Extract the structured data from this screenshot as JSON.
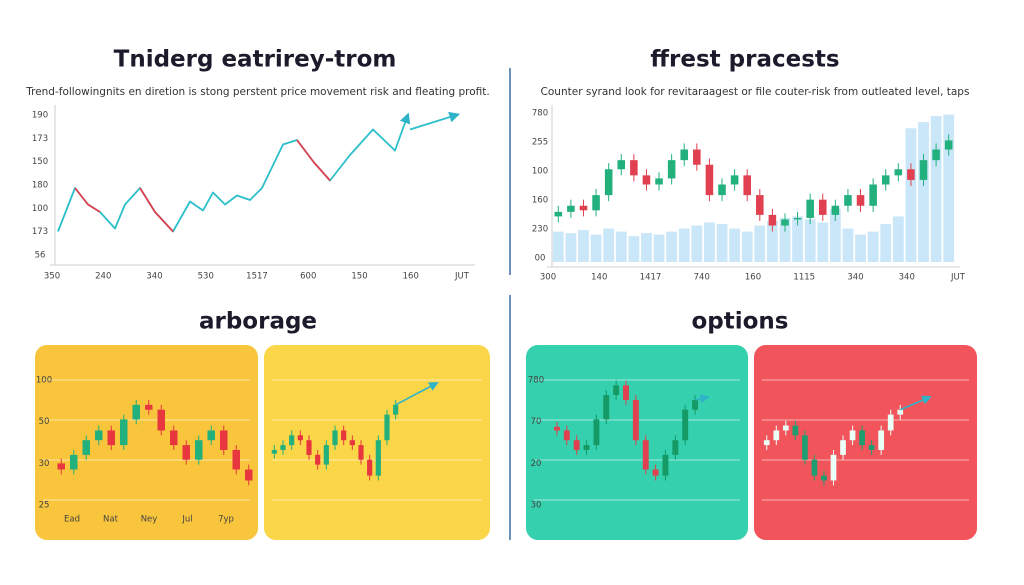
{
  "chart_data": [
    {
      "type": "line",
      "title": "Tniderg eatrirey-trom",
      "subtitle": "Trend-followingnits en diretion is stong perstent price movement risk and fleating profit.",
      "y_labels": [
        "190",
        "173",
        "150",
        "180",
        "100",
        "173",
        "56"
      ],
      "x_labels": [
        "350",
        "240",
        "340",
        "530",
        "1517",
        "600",
        "150",
        "160",
        "JUT"
      ],
      "xlim": [
        0,
        415
      ],
      "ylim": [
        0,
        100
      ],
      "series": [
        {
          "color": "#2bbfc9",
          "arrow": true,
          "x": [
            3,
            20,
            33,
            45,
            60,
            70,
            85,
            100,
            118,
            135,
            148,
            158,
            170,
            182,
            195,
            207,
            228,
            242,
            259,
            275,
            295,
            318,
            340,
            353
          ],
          "values": [
            19,
            48,
            37,
            32,
            21,
            37,
            48,
            32,
            19,
            39,
            33,
            45,
            37,
            43,
            40,
            48,
            77,
            80,
            65,
            53,
            70,
            87,
            73,
            97
          ]
        },
        {
          "color": "#e0404f",
          "x": [
            3,
            20,
            33,
            45,
            60,
            70,
            85,
            100,
            118,
            135,
            148,
            158,
            170,
            182,
            195,
            207,
            228,
            242,
            259,
            275,
            295,
            318,
            340,
            353
          ],
          "values": [
            null,
            48,
            37,
            32,
            null,
            null,
            48,
            32,
            19,
            null,
            null,
            null,
            null,
            null,
            null,
            null,
            null,
            80,
            65,
            53,
            null,
            null,
            null,
            null
          ]
        },
        {
          "color": "#2bbfc9",
          "arrow": true,
          "x": [
            355,
            403
          ],
          "values": [
            87,
            97
          ]
        }
      ]
    },
    {
      "type": "candlestick",
      "title": "ffrest pracests",
      "subtitle": "Counter syrand look for revitaraagest or file couter-risk from outleated level, taps",
      "y_labels": [
        "780",
        "255",
        "100",
        "160",
        "230",
        "00"
      ],
      "x_labels": [
        "300",
        "140",
        "1417",
        "740",
        "160",
        "1115",
        "340",
        "340",
        "JUT"
      ],
      "ylim": [
        0,
        100
      ],
      "up_color": "#22b07d",
      "down_color": "#e0404f",
      "volume_color": "#bfe3f7",
      "open": [
        30,
        33,
        37,
        34,
        44,
        61,
        67,
        57,
        51,
        55,
        67,
        74,
        64,
        44,
        51,
        57,
        44,
        31,
        24,
        28,
        29,
        41,
        31,
        37,
        44,
        37,
        51,
        57,
        61,
        54,
        67,
        74
      ],
      "high": [
        37,
        41,
        41,
        48,
        65,
        71,
        71,
        61,
        59,
        71,
        78,
        78,
        68,
        55,
        61,
        61,
        48,
        35,
        32,
        33,
        45,
        45,
        41,
        48,
        48,
        55,
        61,
        65,
        65,
        71,
        78,
        84
      ],
      "low": [
        26,
        29,
        30,
        30,
        40,
        57,
        53,
        47,
        47,
        51,
        63,
        60,
        40,
        40,
        47,
        40,
        27,
        20,
        20,
        24,
        25,
        27,
        27,
        33,
        33,
        33,
        47,
        53,
        50,
        50,
        63,
        70
      ],
      "close": [
        33,
        37,
        34,
        44,
        61,
        67,
        57,
        51,
        55,
        67,
        74,
        64,
        44,
        51,
        57,
        44,
        31,
        24,
        28,
        29,
        41,
        31,
        37,
        44,
        37,
        51,
        57,
        61,
        54,
        67,
        74,
        80
      ],
      "volume": [
        20,
        19,
        21,
        18,
        22,
        20,
        17,
        19,
        18,
        20,
        22,
        24,
        26,
        25,
        22,
        20,
        24,
        27,
        29,
        30,
        28,
        26,
        35,
        22,
        18,
        20,
        25,
        30,
        88,
        92,
        96,
        97
      ]
    },
    {
      "type": "candlestick",
      "title": "arborage",
      "background": "#f8c53c",
      "grid": true,
      "y_labels": [
        "100",
        "50",
        "30",
        "25"
      ],
      "x_labels": [
        "Ead",
        "Nat",
        "Ney",
        "Jul",
        "7yp"
      ],
      "ylim": [
        0,
        100
      ],
      "up_color": "#22b07d",
      "down_color": "#e8363f",
      "open": [
        30,
        25,
        37,
        49,
        57,
        45,
        66,
        78,
        74,
        57,
        45,
        33,
        49,
        57,
        41,
        25
      ],
      "high": [
        34,
        41,
        53,
        61,
        61,
        70,
        82,
        82,
        78,
        61,
        49,
        53,
        61,
        61,
        45,
        29
      ],
      "low": [
        21,
        21,
        33,
        45,
        41,
        41,
        62,
        70,
        53,
        41,
        29,
        29,
        45,
        37,
        21,
        12
      ],
      "close": [
        25,
        37,
        49,
        57,
        45,
        66,
        78,
        74,
        57,
        45,
        33,
        49,
        57,
        41,
        25,
        16
      ]
    },
    {
      "type": "candlestick",
      "background": "#fbd648",
      "grid": true,
      "trend_arrow": true,
      "ylim": [
        0,
        100
      ],
      "up_color": "#22b07d",
      "down_color": "#e8363f",
      "open": [
        38,
        41,
        45,
        53,
        49,
        37,
        29,
        45,
        57,
        49,
        45,
        33,
        20,
        49,
        70
      ],
      "high": [
        45,
        49,
        57,
        57,
        53,
        41,
        49,
        61,
        61,
        53,
        49,
        37,
        53,
        74,
        82
      ],
      "low": [
        34,
        37,
        41,
        45,
        33,
        25,
        25,
        41,
        45,
        41,
        29,
        16,
        16,
        45,
        66
      ],
      "close": [
        41,
        45,
        53,
        49,
        37,
        29,
        45,
        57,
        49,
        45,
        33,
        20,
        49,
        70,
        78
      ]
    },
    {
      "type": "candlestick",
      "title": "options",
      "background": "#35d0ad",
      "grid": true,
      "trend_arrow": true,
      "y_labels": [
        "780",
        "70",
        "20",
        "30"
      ],
      "ylim": [
        0,
        100
      ],
      "up_color": "#159a66",
      "down_color": "#e0404f",
      "open": [
        60,
        57,
        49,
        41,
        45,
        66,
        86,
        94,
        82,
        49,
        25,
        20,
        37,
        49,
        74
      ],
      "high": [
        64,
        61,
        53,
        49,
        70,
        90,
        98,
        98,
        86,
        53,
        29,
        41,
        53,
        78,
        86
      ],
      "low": [
        53,
        45,
        37,
        37,
        41,
        62,
        82,
        78,
        45,
        21,
        16,
        16,
        33,
        45,
        70
      ],
      "close": [
        57,
        49,
        41,
        45,
        66,
        86,
        94,
        82,
        49,
        25,
        20,
        37,
        49,
        74,
        82
      ]
    },
    {
      "type": "candlestick",
      "background": "#f2545b",
      "grid": true,
      "trend_arrow": true,
      "ylim": [
        0,
        100
      ],
      "up_color": "#eafff5",
      "down_color": "#1e9e70",
      "open": [
        45,
        49,
        57,
        61,
        53,
        33,
        20,
        16,
        37,
        49,
        57,
        45,
        41,
        57,
        70
      ],
      "high": [
        53,
        61,
        65,
        65,
        57,
        37,
        24,
        41,
        53,
        61,
        61,
        49,
        61,
        74,
        78
      ],
      "low": [
        41,
        45,
        53,
        49,
        29,
        16,
        12,
        12,
        33,
        45,
        41,
        37,
        37,
        53,
        66
      ],
      "close": [
        49,
        57,
        61,
        53,
        33,
        20,
        16,
        37,
        49,
        57,
        45,
        41,
        57,
        70,
        74
      ]
    }
  ]
}
